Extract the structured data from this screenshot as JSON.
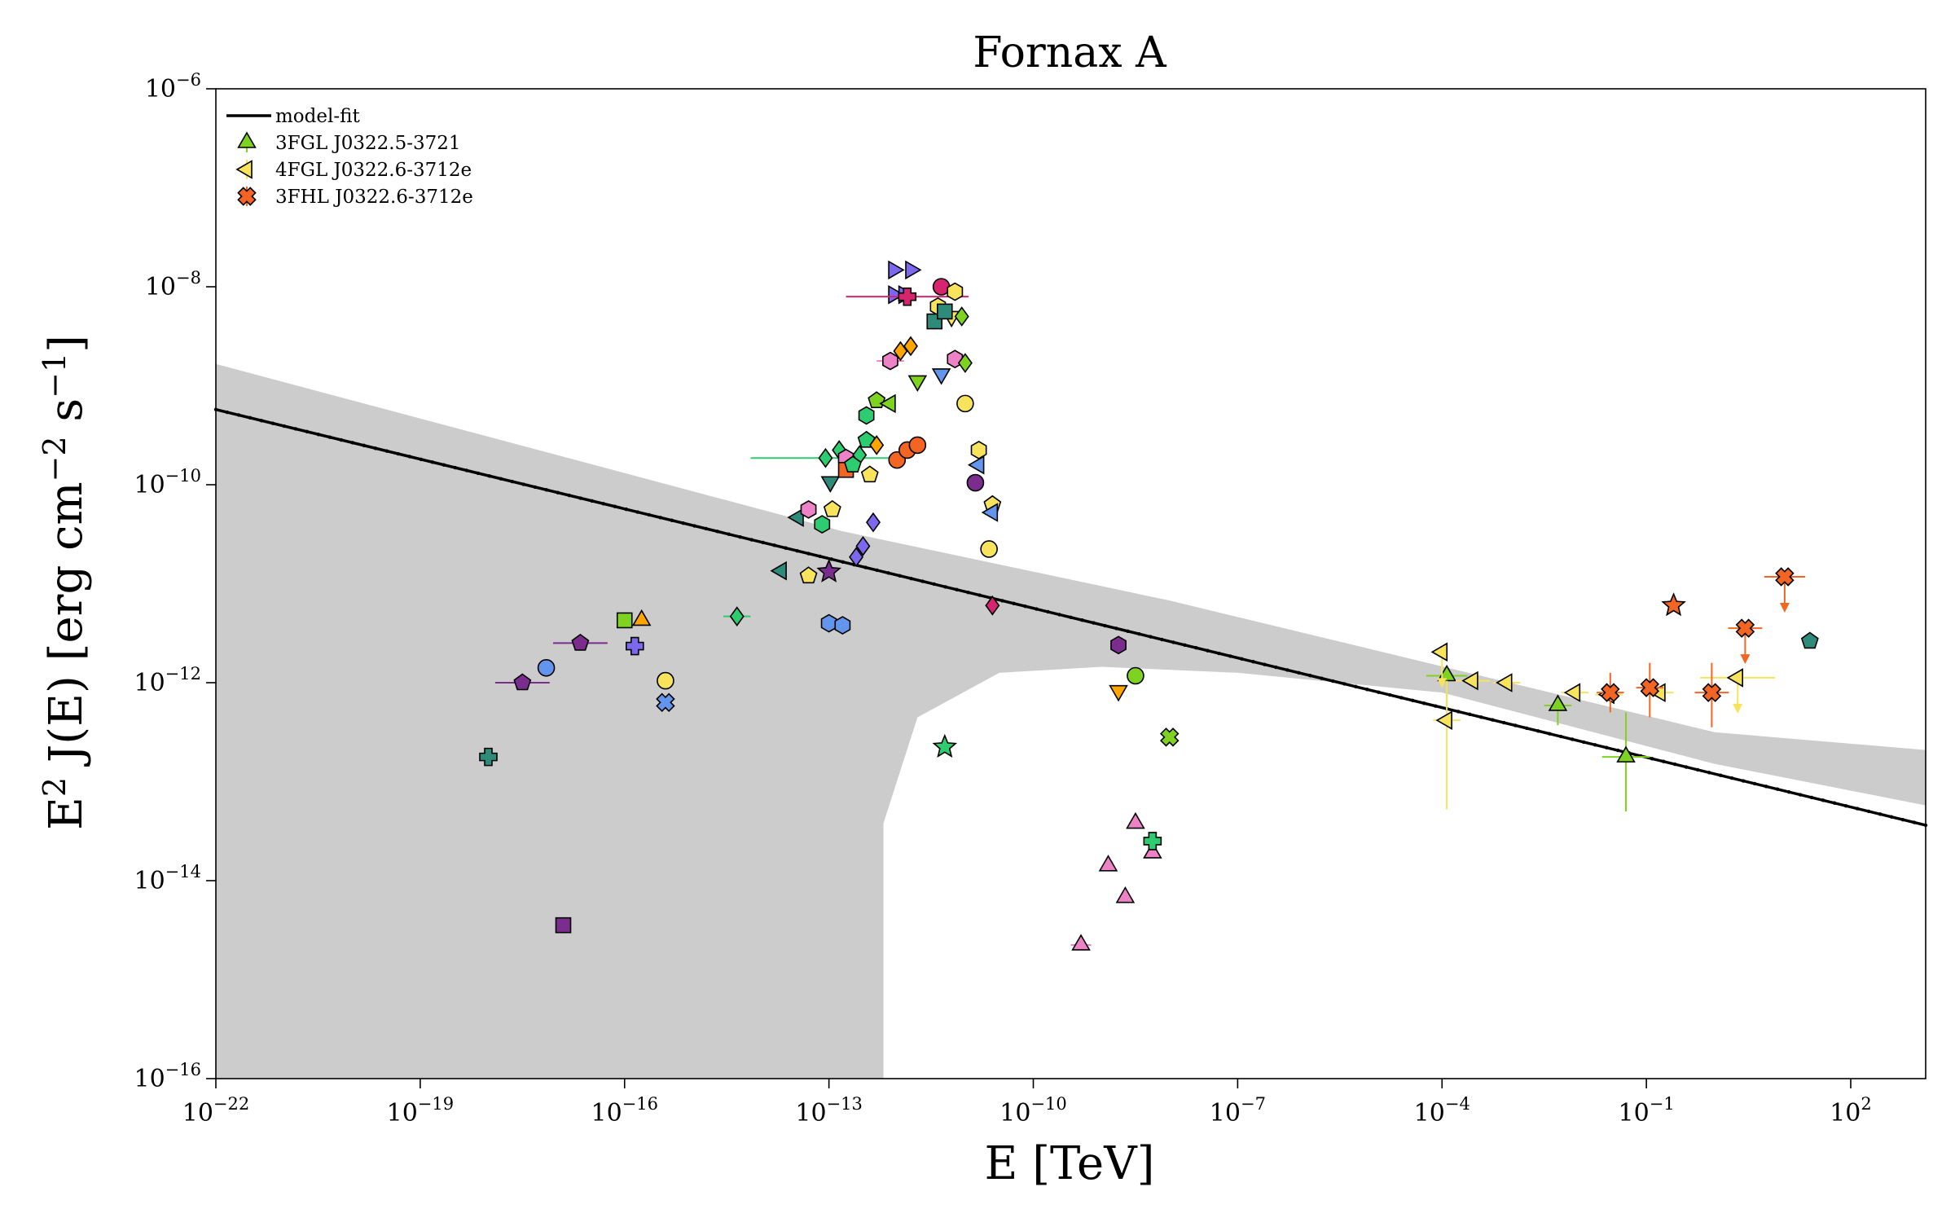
{
  "chart_data": {
    "type": "scatter",
    "title": "Fornax A",
    "xlabel": {
      "base": "E [TeV]"
    },
    "ylabel": {
      "prefix": "E",
      "sup2": "2",
      "mid": " J(E) [erg cm",
      "supm2": "−2",
      "mid2": " s",
      "supm1": "−1",
      "suffix": "]"
    },
    "xscale": "log",
    "yscale": "log",
    "xlim_log10": [
      -22,
      3.1
    ],
    "ylim_log10": [
      -16,
      -6
    ],
    "x_ticks": [
      {
        "label_base": "10",
        "label_exp": "−22",
        "log10": -22
      },
      {
        "label_base": "10",
        "label_exp": "−19",
        "log10": -19
      },
      {
        "label_base": "10",
        "label_exp": "−16",
        "log10": -16
      },
      {
        "label_base": "10",
        "label_exp": "−13",
        "log10": -13
      },
      {
        "label_base": "10",
        "label_exp": "−10",
        "log10": -10
      },
      {
        "label_base": "10",
        "label_exp": "−7",
        "log10": -7
      },
      {
        "label_base": "10",
        "label_exp": "−4",
        "log10": -4
      },
      {
        "label_base": "10",
        "label_exp": "−1",
        "log10": -1
      },
      {
        "label_base": "10",
        "label_exp": "2",
        "log10": 2
      }
    ],
    "y_ticks": [
      {
        "label_base": "10",
        "label_exp": "−6",
        "log10": -6
      },
      {
        "label_base": "10",
        "label_exp": "−8",
        "log10": -8
      },
      {
        "label_base": "10",
        "label_exp": "−10",
        "log10": -10
      },
      {
        "label_base": "10",
        "label_exp": "−12",
        "log10": -12
      },
      {
        "label_base": "10",
        "label_exp": "−14",
        "log10": -14
      },
      {
        "label_base": "10",
        "label_exp": "−16",
        "log10": -16
      }
    ],
    "grid": false,
    "legend_position": "top-left",
    "legend": [
      {
        "label": "model-fit",
        "marker": "line",
        "color": "#000000"
      },
      {
        "label": "3FGL J0322.5-3721",
        "marker": "triangle-up",
        "color": "#7ed321"
      },
      {
        "label": "4FGL J0322.6-3712e",
        "marker": "triangle-left",
        "color": "#f8e45c"
      },
      {
        "label": "3FHL J0322.6-3712e",
        "marker": "x",
        "color": "#f26522"
      }
    ],
    "model_fit": {
      "color": "#000000",
      "x_log10": [
        -22,
        3.1
      ],
      "y_log10": [
        -9.24,
        -13.44
      ]
    },
    "uncertainty_band": {
      "color": "#cccccc",
      "upper": [
        [
          -22,
          -8.78
        ],
        [
          -12.8,
          -10.47
        ],
        [
          -8,
          -11.17
        ],
        [
          0,
          -12.5
        ],
        [
          3.1,
          -12.68
        ]
      ],
      "lower": [
        [
          -22,
          -16
        ],
        [
          -12.2,
          -16
        ],
        [
          -12.2,
          -13.42
        ],
        [
          -11.7,
          -12.35
        ],
        [
          -10.5,
          -11.9
        ],
        [
          -9,
          -11.84
        ],
        [
          -7,
          -11.9
        ],
        [
          -4,
          -12.1
        ],
        [
          0,
          -12.82
        ],
        [
          3.1,
          -13.24
        ]
      ]
    },
    "series": [
      {
        "name": "3FGL J0322.5-3721",
        "marker": "triangle-up",
        "color": "#7ed321",
        "points": [
          {
            "x": -3.93,
            "y": -11.93,
            "xerr": 0.3,
            "yerr_lo": 0.3
          },
          {
            "x": -2.3,
            "y": -12.23,
            "xerr": 0.2,
            "yerr_lo": 0.2
          },
          {
            "x": -1.3,
            "y": -12.75,
            "xerr": 0.35,
            "yerr_lo": 0.55,
            "yerr_hi": 0.45
          }
        ]
      },
      {
        "name": "4FGL J0322.6-3712e",
        "marker": "triangle-left",
        "color": "#f8e45c",
        "points": [
          {
            "x": -4.0,
            "y": -11.69,
            "upper_limit": true
          },
          {
            "x": -3.93,
            "y": -12.38,
            "xerr": 0.2,
            "yerr_lo": 0.9,
            "yerr_hi": 0.4
          },
          {
            "x": -3.55,
            "y": -11.98,
            "xerr": 0.25
          },
          {
            "x": -3.05,
            "y": -12.0,
            "xerr": 0.2
          },
          {
            "x": -2.05,
            "y": -12.1,
            "xerr": 0.2
          },
          {
            "x": -1.55,
            "y": -12.12,
            "xerr": 0.2
          },
          {
            "x": -0.8,
            "y": -12.1,
            "xerr": 0.2
          },
          {
            "x": 0.34,
            "y": -11.95,
            "xerr": 0.55,
            "upper_limit": true
          }
        ]
      },
      {
        "name": "3FHL J0322.6-3712e",
        "marker": "x",
        "color": "#f26522",
        "points": [
          {
            "x": -1.53,
            "y": -12.1,
            "xerr": 0.2,
            "yerr_lo": 0.2,
            "yerr_hi": 0.2
          },
          {
            "x": -0.95,
            "y": -12.05,
            "xerr": 0.2,
            "yerr_lo": 0.3,
            "yerr_hi": 0.25
          },
          {
            "x": -0.04,
            "y": -12.1,
            "xerr": 0.25,
            "yerr_lo": 0.35,
            "yerr_hi": 0.3
          },
          {
            "x": 0.45,
            "y": -11.45,
            "xerr": 0.25,
            "upper_limit": true
          },
          {
            "x": 1.03,
            "y": -10.93,
            "xerr": 0.3,
            "upper_limit": true
          }
        ]
      }
    ],
    "other_points": [
      {
        "x": -18.0,
        "y": -12.75,
        "marker": "plus",
        "color": "#2e8b7a"
      },
      {
        "x": -17.5,
        "y": -12.0,
        "marker": "pentagon",
        "color": "#7b2d8e",
        "xerr": 0.4
      },
      {
        "x": -17.15,
        "y": -11.85,
        "marker": "circle",
        "color": "#6495ed"
      },
      {
        "x": -16.9,
        "y": -14.45,
        "marker": "square",
        "color": "#7b2d8e"
      },
      {
        "x": -16.65,
        "y": -11.6,
        "marker": "pentagon",
        "color": "#7b2d8e",
        "xerr": 0.4
      },
      {
        "x": -16.0,
        "y": -11.37,
        "marker": "square",
        "color": "#7ed321"
      },
      {
        "x": -15.85,
        "y": -11.63,
        "marker": "plus",
        "color": "#7b68ee"
      },
      {
        "x": -15.75,
        "y": -11.37,
        "marker": "triangle-up",
        "color": "#ffa500"
      },
      {
        "x": -15.4,
        "y": -11.98,
        "marker": "circle",
        "color": "#f8e45c"
      },
      {
        "x": -15.4,
        "y": -12.2,
        "marker": "x",
        "color": "#6495ed"
      },
      {
        "x": -14.35,
        "y": -11.33,
        "marker": "diamond",
        "color": "#2ecc71",
        "xerr": 0.2
      },
      {
        "x": -13.7,
        "y": -10.87,
        "marker": "triangle-left",
        "color": "#2e8b7a"
      },
      {
        "x": -13.45,
        "y": -10.33,
        "marker": "triangle-left",
        "color": "#2e8b7a"
      },
      {
        "x": -13.05,
        "y": -9.73,
        "marker": "diamond",
        "color": "#2ecc71",
        "xerr": 1.1
      },
      {
        "x": -12.85,
        "y": -9.65,
        "marker": "diamond",
        "color": "#2ecc71"
      },
      {
        "x": -12.75,
        "y": -9.73,
        "marker": "hexagon",
        "color": "#ee82c6"
      },
      {
        "x": -12.55,
        "y": -9.7,
        "marker": "diamond",
        "color": "#2ecc71"
      },
      {
        "x": -12.4,
        "y": -9.9,
        "marker": "pentagon",
        "color": "#f8e45c"
      },
      {
        "x": -13.3,
        "y": -10.92,
        "marker": "pentagon",
        "color": "#f8e45c"
      },
      {
        "x": -13.3,
        "y": -10.25,
        "marker": "hexagon",
        "color": "#ee82c6"
      },
      {
        "x": -13.1,
        "y": -10.4,
        "marker": "hexagon",
        "color": "#2ecc71"
      },
      {
        "x": -12.95,
        "y": -10.25,
        "marker": "pentagon",
        "color": "#f8e45c"
      },
      {
        "x": -13.0,
        "y": -10.88,
        "marker": "star",
        "color": "#7b2d8e"
      },
      {
        "x": -12.98,
        "y": -9.97,
        "marker": "triangle-down",
        "color": "#2e8b7a"
      },
      {
        "x": -13.0,
        "y": -11.4,
        "marker": "hexagon",
        "color": "#6495ed"
      },
      {
        "x": -12.8,
        "y": -11.42,
        "marker": "hexagon",
        "color": "#6495ed"
      },
      {
        "x": -12.6,
        "y": -10.73,
        "marker": "diamond",
        "color": "#7b68ee"
      },
      {
        "x": -12.5,
        "y": -10.62,
        "marker": "diamond",
        "color": "#7b68ee"
      },
      {
        "x": -12.35,
        "y": -10.38,
        "marker": "diamond",
        "color": "#7b68ee"
      },
      {
        "x": -12.75,
        "y": -9.85,
        "marker": "square",
        "color": "#f26522"
      },
      {
        "x": -12.65,
        "y": -9.8,
        "marker": "pentagon",
        "color": "#2ecc71"
      },
      {
        "x": -12.45,
        "y": -9.55,
        "marker": "pentagon",
        "color": "#2ecc71"
      },
      {
        "x": -12.3,
        "y": -9.6,
        "marker": "diamond",
        "color": "#ffa500"
      },
      {
        "x": -12.45,
        "y": -9.3,
        "marker": "hexagon",
        "color": "#2ecc71"
      },
      {
        "x": -12.3,
        "y": -9.15,
        "marker": "pentagon",
        "color": "#7ed321"
      },
      {
        "x": -12.1,
        "y": -9.18,
        "marker": "triangle-left",
        "color": "#7ed321"
      },
      {
        "x": -12.1,
        "y": -8.75,
        "marker": "hexagon",
        "color": "#ee82c6",
        "xerr": 0.2
      },
      {
        "x": -11.95,
        "y": -8.65,
        "marker": "diamond",
        "color": "#ffa500"
      },
      {
        "x": -11.8,
        "y": -8.6,
        "marker": "diamond",
        "color": "#ffa500"
      },
      {
        "x": -11.7,
        "y": -8.95,
        "marker": "triangle-down",
        "color": "#7ed321"
      },
      {
        "x": -11.35,
        "y": -8.88,
        "marker": "triangle-down",
        "color": "#6495ed"
      },
      {
        "x": -12.0,
        "y": -9.75,
        "marker": "circle",
        "color": "#f26522"
      },
      {
        "x": -11.85,
        "y": -9.65,
        "marker": "circle",
        "color": "#f26522"
      },
      {
        "x": -11.7,
        "y": -9.6,
        "marker": "circle",
        "color": "#f26522"
      },
      {
        "x": -12.05,
        "y": -8.08,
        "marker": "triangle-right",
        "color": "#7b68ee"
      },
      {
        "x": -11.9,
        "y": -8.08,
        "marker": "triangle-right",
        "color": "#7b68ee"
      },
      {
        "x": -12.05,
        "y": -7.83,
        "marker": "triangle-right",
        "color": "#7b68ee"
      },
      {
        "x": -11.8,
        "y": -7.83,
        "marker": "triangle-right",
        "color": "#7b68ee"
      },
      {
        "x": -11.85,
        "y": -8.1,
        "marker": "plus",
        "color": "#d6246e",
        "xerr": 0.9
      },
      {
        "x": -11.35,
        "y": -8.0,
        "marker": "circle",
        "color": "#d6246e"
      },
      {
        "x": -11.15,
        "y": -8.05,
        "marker": "hexagon",
        "color": "#f8e45c"
      },
      {
        "x": -11.4,
        "y": -8.2,
        "marker": "hexagon",
        "color": "#f8e45c"
      },
      {
        "x": -11.2,
        "y": -8.3,
        "marker": "triangle-down",
        "color": "#f8e45c"
      },
      {
        "x": -11.45,
        "y": -8.35,
        "marker": "square",
        "color": "#2e8b7a"
      },
      {
        "x": -11.3,
        "y": -8.25,
        "marker": "square",
        "color": "#2e8b7a"
      },
      {
        "x": -11.05,
        "y": -8.3,
        "marker": "diamond",
        "color": "#7ed321"
      },
      {
        "x": -11.15,
        "y": -8.73,
        "marker": "hexagon",
        "color": "#ee82c6"
      },
      {
        "x": -11.0,
        "y": -8.77,
        "marker": "diamond",
        "color": "#7ed321"
      },
      {
        "x": -11.0,
        "y": -9.18,
        "marker": "circle",
        "color": "#f8e45c"
      },
      {
        "x": -10.8,
        "y": -9.65,
        "marker": "hexagon",
        "color": "#f8e45c"
      },
      {
        "x": -10.8,
        "y": -9.8,
        "marker": "triangle-left",
        "color": "#6495ed"
      },
      {
        "x": -10.85,
        "y": -9.98,
        "marker": "circle",
        "color": "#7b2d8e"
      },
      {
        "x": -10.6,
        "y": -10.2,
        "marker": "pentagon",
        "color": "#f8e45c"
      },
      {
        "x": -10.6,
        "y": -10.28,
        "marker": "triangle-left",
        "color": "#6495ed"
      },
      {
        "x": -10.65,
        "y": -10.65,
        "marker": "circle",
        "color": "#f8e45c"
      },
      {
        "x": -10.6,
        "y": -11.22,
        "marker": "diamond",
        "color": "#d6246e"
      },
      {
        "x": -11.3,
        "y": -12.65,
        "marker": "star",
        "color": "#2ecc71"
      },
      {
        "x": -9.3,
        "y": -14.65,
        "marker": "triangle-up",
        "color": "#ee82c6",
        "xerr": 0.15
      },
      {
        "x": -8.9,
        "y": -13.85,
        "marker": "triangle-up",
        "color": "#ee82c6"
      },
      {
        "x": -8.65,
        "y": -14.17,
        "marker": "triangle-up",
        "color": "#ee82c6"
      },
      {
        "x": -8.5,
        "y": -13.42,
        "marker": "triangle-up",
        "color": "#ee82c6"
      },
      {
        "x": -8.25,
        "y": -13.72,
        "marker": "triangle-up",
        "color": "#ee82c6"
      },
      {
        "x": -8.25,
        "y": -13.6,
        "marker": "plus",
        "color": "#2ecc71"
      },
      {
        "x": -8.0,
        "y": -12.55,
        "marker": "x",
        "color": "#7ed321"
      },
      {
        "x": -8.75,
        "y": -11.62,
        "marker": "hexagon",
        "color": "#7b2d8e"
      },
      {
        "x": -8.75,
        "y": -12.08,
        "marker": "triangle-down",
        "color": "#ffa500"
      },
      {
        "x": -8.5,
        "y": -11.93,
        "marker": "circle",
        "color": "#7ed321"
      },
      {
        "x": 1.4,
        "y": -11.58,
        "marker": "pentagon",
        "color": "#2e8b7a"
      },
      {
        "x": -0.6,
        "y": -11.22,
        "marker": "star",
        "color": "#f26522"
      }
    ]
  }
}
